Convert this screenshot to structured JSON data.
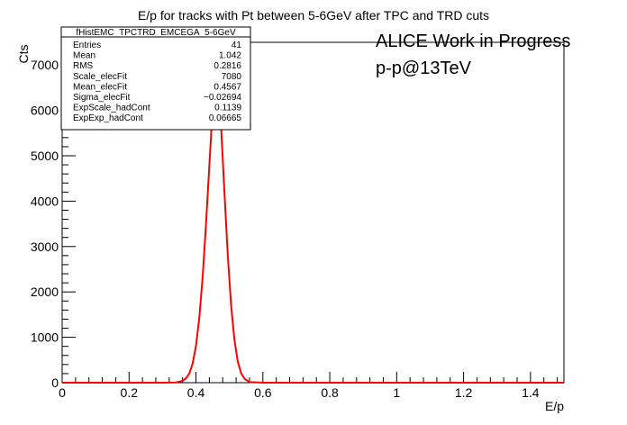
{
  "chart_data": {
    "type": "line",
    "title": "E/p for tracks with Pt between 5-6GeV after TPC and TRD cuts",
    "xlabel": "E/p",
    "ylabel": "Cts",
    "xlim": [
      0,
      1.5
    ],
    "ylim": [
      0,
      7500
    ],
    "xticks": [
      0,
      0.2,
      0.4,
      0.6,
      0.8,
      1,
      1.2,
      1.4
    ],
    "xtick_labels": [
      "0",
      "0.2",
      "0.4",
      "0.6",
      "0.8",
      "1",
      "1.2",
      "1.4"
    ],
    "yticks": [
      0,
      1000,
      2000,
      3000,
      4000,
      5000,
      6000,
      7000
    ],
    "ytick_labels": [
      "0",
      "1000",
      "2000",
      "3000",
      "4000",
      "5000",
      "6000",
      "7000"
    ],
    "grid": false,
    "series": [
      {
        "color": "#ff0000",
        "x": [
          0.0,
          0.3,
          0.34,
          0.36,
          0.37,
          0.38,
          0.39,
          0.4,
          0.41,
          0.42,
          0.43,
          0.44,
          0.45,
          0.4567,
          0.465,
          0.475,
          0.485,
          0.495,
          0.505,
          0.515,
          0.525,
          0.535,
          0.545,
          0.56,
          0.6,
          1.5
        ],
        "y": [
          0,
          0,
          5,
          40,
          95,
          200,
          420,
          810,
          1430,
          2330,
          3490,
          4790,
          6070,
          7080,
          6860,
          5660,
          4200,
          2820,
          1710,
          940,
          465,
          210,
          85,
          15,
          0,
          0
        ]
      }
    ],
    "annotations": [
      "ALICE Work in Progress",
      "p-p@13TeV"
    ],
    "stats_box": {
      "title": "fHistEMC_TPCTRD_EMCEGA_5-6GeV",
      "rows": [
        {
          "label": "Entries",
          "value": "41"
        },
        {
          "label": "Mean",
          "value": "1.042"
        },
        {
          "label": "RMS",
          "value": "0.2816"
        },
        {
          "label": "Scale_elecFit",
          "value": "7080"
        },
        {
          "label": "Mean_elecFit",
          "value": "0.4567"
        },
        {
          "label": "Sigma_elecFit",
          "value": "−0.02694"
        },
        {
          "label": "ExpScale_hadCont",
          "value": "0.1139"
        },
        {
          "label": "ExpExp_hadCont",
          "value": "0.06665"
        }
      ]
    }
  },
  "colors": {
    "frame": "#000000",
    "curve": "#ff0000",
    "background": "#ffffff"
  }
}
